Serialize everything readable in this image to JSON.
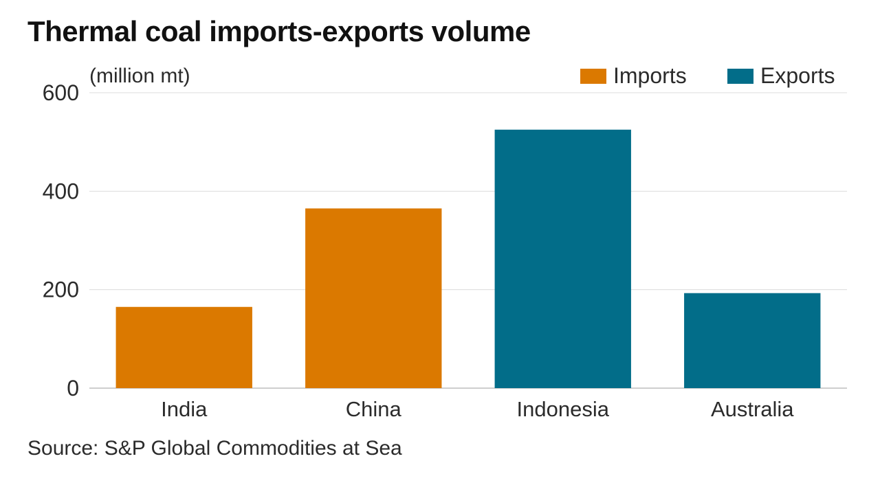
{
  "chart_data": {
    "type": "bar",
    "title": "Thermal coal imports-exports volume",
    "ylabel": "(million mt)",
    "xlabel": "",
    "categories": [
      "India",
      "China",
      "Indonesia",
      "Australia"
    ],
    "values": [
      165,
      365,
      525,
      193
    ],
    "bar_series": [
      "Imports",
      "Imports",
      "Exports",
      "Exports"
    ],
    "series": [
      {
        "name": "Imports",
        "color": "#DB7900"
      },
      {
        "name": "Exports",
        "color": "#026D89"
      }
    ],
    "yticks": [
      0,
      200,
      400,
      600
    ],
    "ylim": [
      0,
      600
    ],
    "grid": true,
    "legend": "top-right",
    "source": "Source: S&P Global Commodities at Sea"
  }
}
